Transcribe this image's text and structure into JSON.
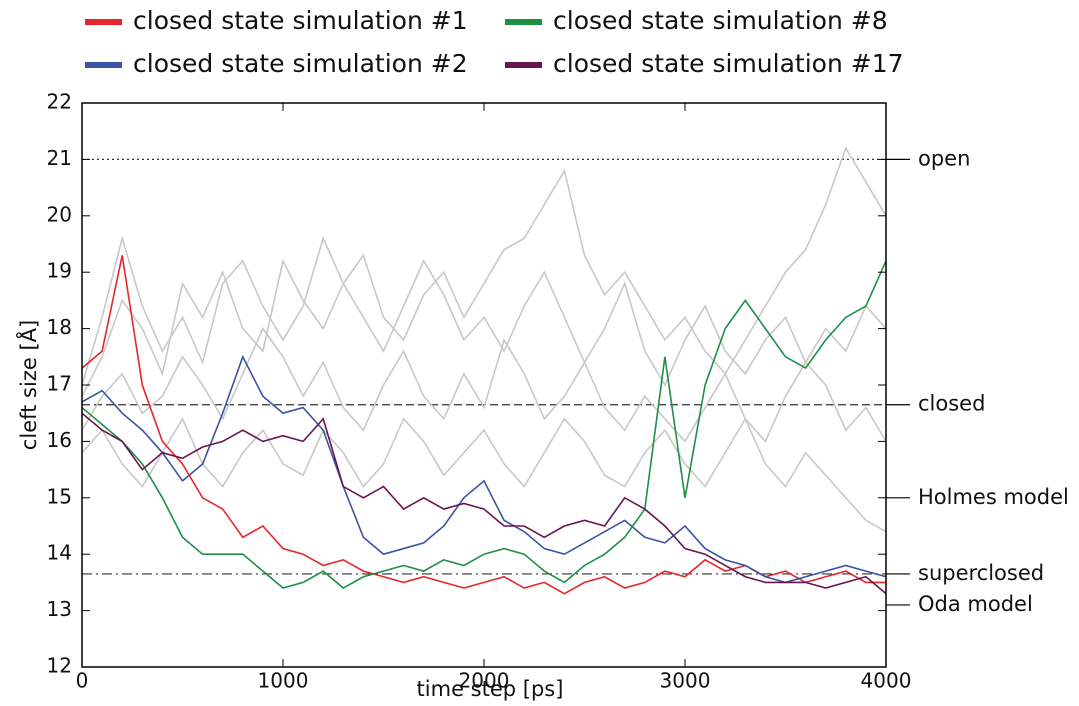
{
  "chart_data": {
    "type": "line",
    "xlabel": "time step [ps]",
    "ylabel": "cleft size [Å]",
    "xlim": [
      0,
      4000
    ],
    "xticks": [
      0,
      1000,
      2000,
      3000,
      4000
    ],
    "ylim": [
      12,
      22
    ],
    "yticks": [
      12,
      13,
      14,
      15,
      16,
      17,
      18,
      19,
      20,
      21,
      22
    ],
    "legend": "top",
    "x": [
      0,
      100,
      200,
      300,
      400,
      500,
      600,
      700,
      800,
      900,
      1000,
      1100,
      1200,
      1300,
      1400,
      1500,
      1600,
      1700,
      1800,
      1900,
      2000,
      2100,
      2200,
      2300,
      2400,
      2500,
      2600,
      2700,
      2800,
      2900,
      3000,
      3100,
      3200,
      3300,
      3400,
      3500,
      3600,
      3700,
      3800,
      3900,
      4000
    ],
    "series": [
      {
        "color": "#c8c8c8",
        "values": [
          16.8,
          17.5,
          18.5,
          18,
          17.2,
          18.8,
          18.2,
          19,
          18,
          17.6,
          19.2,
          18.5,
          18,
          18.8,
          19.3,
          18.2,
          17.8,
          18.6,
          19,
          18.2,
          18.8,
          19.4,
          19.6,
          20.2,
          20.8,
          19.3,
          18.6,
          19,
          18.4,
          17.8,
          18.2,
          17.6,
          17.2,
          17.8,
          18.4,
          19,
          19.4,
          20.2,
          21.2,
          20.6,
          20
        ]
      },
      {
        "color": "#c8c8c8",
        "values": [
          16.2,
          16.8,
          17.2,
          16.5,
          16.8,
          17.5,
          17,
          16.4,
          17.2,
          18,
          17.5,
          16.8,
          17.4,
          16.6,
          16.2,
          17,
          17.6,
          16.8,
          16.4,
          17.2,
          16.6,
          17.8,
          17.2,
          16.4,
          16.8,
          17.4,
          16.6,
          16.2,
          16.8,
          16.4,
          16,
          16.6,
          17.2,
          16.4,
          16,
          16.8,
          17.4,
          17,
          16.2,
          16.6,
          16
        ]
      },
      {
        "color": "#c8c8c8",
        "values": [
          15.8,
          16.2,
          15.6,
          15.2,
          15.8,
          16.4,
          15.6,
          15.2,
          15.8,
          16.2,
          15.6,
          15.4,
          16.2,
          15.8,
          15.2,
          15.6,
          16.4,
          16,
          15.4,
          15.8,
          16.2,
          15.6,
          15.2,
          15.8,
          16.4,
          16,
          15.4,
          15.2,
          15.8,
          16.2,
          15.6,
          15.2,
          15.8,
          16.4,
          15.6,
          15.2,
          15.8,
          15.4,
          15,
          14.6,
          14.4
        ]
      },
      {
        "color": "#c8c8c8",
        "values": [
          17,
          18.2,
          19.6,
          18.4,
          17.6,
          18.2,
          17.4,
          18.8,
          19.2,
          18.4,
          17.8,
          18.4,
          19.6,
          18.8,
          18.2,
          17.6,
          18.4,
          19.2,
          18.6,
          17.8,
          18.2,
          17.6,
          18.4,
          19,
          18.2,
          17.4,
          18,
          18.8,
          17.6,
          17,
          17.8,
          18.4,
          17.6,
          17.2,
          17.8,
          18.2,
          17.4,
          18,
          17.6,
          18.4,
          18
        ]
      },
      {
        "name": "closed state simulation #1",
        "color": "#e8262b",
        "values": [
          17.3,
          17.6,
          19.3,
          17,
          16,
          15.6,
          15,
          14.8,
          14.3,
          14.5,
          14.1,
          14,
          13.8,
          13.9,
          13.7,
          13.6,
          13.5,
          13.6,
          13.5,
          13.4,
          13.5,
          13.6,
          13.4,
          13.5,
          13.3,
          13.5,
          13.6,
          13.4,
          13.5,
          13.7,
          13.6,
          13.9,
          13.7,
          13.8,
          13.6,
          13.7,
          13.5,
          13.6,
          13.7,
          13.5,
          13.5
        ]
      },
      {
        "name": "closed state simulation #2",
        "color": "#3a55a6",
        "values": [
          16.7,
          16.9,
          16.5,
          16.2,
          15.8,
          15.3,
          15.6,
          16.5,
          17.5,
          16.8,
          16.5,
          16.6,
          16.2,
          15.2,
          14.3,
          14,
          14.1,
          14.2,
          14.5,
          15,
          15.3,
          14.6,
          14.4,
          14.1,
          14,
          14.2,
          14.4,
          14.6,
          14.3,
          14.2,
          14.5,
          14.1,
          13.9,
          13.8,
          13.6,
          13.5,
          13.6,
          13.7,
          13.8,
          13.7,
          13.6
        ]
      },
      {
        "name": "closed state simulation #8",
        "color": "#1e8f44",
        "values": [
          16.6,
          16.3,
          16,
          15.6,
          15,
          14.3,
          14,
          14,
          14,
          13.7,
          13.4,
          13.5,
          13.7,
          13.4,
          13.6,
          13.7,
          13.8,
          13.7,
          13.9,
          13.8,
          14,
          14.1,
          14,
          13.7,
          13.5,
          13.8,
          14,
          14.3,
          14.8,
          17.5,
          15,
          17,
          18,
          18.5,
          18,
          17.5,
          17.3,
          17.8,
          18.2,
          18.4,
          19.2
        ]
      },
      {
        "name": "closed state simulation #17",
        "color": "#6b1550",
        "values": [
          16.5,
          16.2,
          16,
          15.5,
          15.8,
          15.7,
          15.9,
          16,
          16.2,
          16,
          16.1,
          16,
          16.4,
          15.2,
          15,
          15.2,
          14.8,
          15,
          14.8,
          14.9,
          14.8,
          14.5,
          14.5,
          14.3,
          14.5,
          14.6,
          14.5,
          15,
          14.8,
          14.5,
          14.1,
          14,
          13.8,
          13.6,
          13.5,
          13.5,
          13.5,
          13.4,
          13.5,
          13.6,
          13.3
        ]
      }
    ],
    "reference_lines": [
      {
        "label": "open",
        "value": 21,
        "style": "dotted"
      },
      {
        "label": "closed",
        "value": 16.65,
        "style": "dashed"
      },
      {
        "label": "Holmes model",
        "value": 15,
        "style": "tick"
      },
      {
        "label": "superclosed",
        "value": 13.65,
        "style": "dashdot"
      },
      {
        "label": "Oda model",
        "value": 13.1,
        "style": "tick"
      }
    ]
  }
}
